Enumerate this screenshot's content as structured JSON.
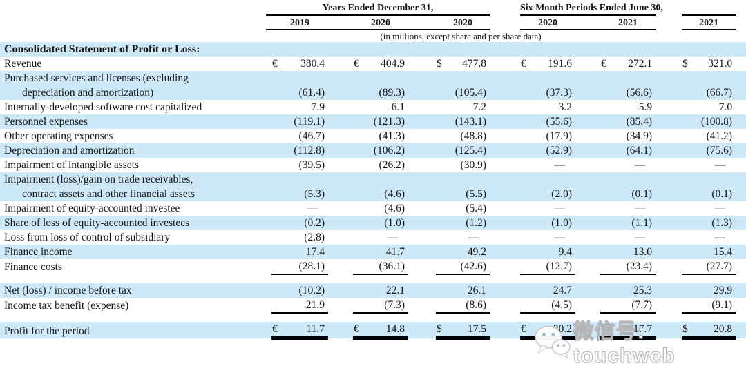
{
  "header": {
    "group1_label": "Years Ended December 31,",
    "group2_label": "Six Month Periods Ended June 30,",
    "years": [
      "2019",
      "2020",
      "2020",
      "2020",
      "2021",
      "2021"
    ],
    "note": "(in millions, except share and per share data)"
  },
  "colors": {
    "row_shade": "#cde9f8",
    "rule": "#000000",
    "text": "#141414"
  },
  "watermark": {
    "icon": "wechat-icon",
    "text": "微信号: touchweb"
  },
  "table": {
    "rows": [
      {
        "type": "section",
        "lines": [
          "Consolidated Statement of Profit or Loss:"
        ],
        "shade": true
      },
      {
        "type": "data",
        "lines": [
          "Revenue"
        ],
        "syms": [
          "€",
          "€",
          "$",
          "€",
          "€",
          "$"
        ],
        "values": [
          "380.4",
          "404.9",
          "477.8",
          "191.6",
          "272.1",
          "321.0"
        ],
        "shade": false
      },
      {
        "type": "data",
        "lines": [
          "Purchased services and licenses (excluding",
          "depreciation and amortization)"
        ],
        "values": [
          "(61.4)",
          "(89.3)",
          "(105.4)",
          "(37.3)",
          "(56.6)",
          "(66.7)"
        ],
        "shade": true
      },
      {
        "type": "data",
        "lines": [
          "Internally-developed software cost capitalized"
        ],
        "values": [
          "7.9",
          "6.1",
          "7.2",
          "3.2",
          "5.9",
          "7.0"
        ],
        "shade": false
      },
      {
        "type": "data",
        "lines": [
          "Personnel expenses"
        ],
        "values": [
          "(119.1)",
          "(121.3)",
          "(143.1)",
          "(55.6)",
          "(85.4)",
          "(100.8)"
        ],
        "shade": true
      },
      {
        "type": "data",
        "lines": [
          "Other operating expenses"
        ],
        "values": [
          "(46.7)",
          "(41.3)",
          "(48.8)",
          "(17.9)",
          "(34.9)",
          "(41.2)"
        ],
        "shade": false
      },
      {
        "type": "data",
        "lines": [
          "Depreciation and amortization"
        ],
        "values": [
          "(112.8)",
          "(106.2)",
          "(125.4)",
          "(52.9)",
          "(64.1)",
          "(75.6)"
        ],
        "shade": true
      },
      {
        "type": "data",
        "lines": [
          "Impairment of intangible assets"
        ],
        "values": [
          "(39.5)",
          "(26.2)",
          "(30.9)",
          "—",
          "—",
          "—"
        ],
        "shade": false
      },
      {
        "type": "data",
        "lines": [
          "Impairment (loss)/gain on trade receivables,",
          "contract assets and other financial assets"
        ],
        "values": [
          "(5.3)",
          "(4.6)",
          "(5.5)",
          "(2.0)",
          "(0.1)",
          "(0.1)"
        ],
        "shade": true
      },
      {
        "type": "data",
        "lines": [
          "Impairment of equity-accounted investee"
        ],
        "values": [
          "—",
          "(4.6)",
          "(5.4)",
          "—",
          "—",
          "—"
        ],
        "shade": false
      },
      {
        "type": "data",
        "lines": [
          "Share of loss of equity-accounted investees"
        ],
        "values": [
          "(0.2)",
          "(1.0)",
          "(1.2)",
          "(1.0)",
          "(1.1)",
          "(1.3)"
        ],
        "shade": true
      },
      {
        "type": "data",
        "lines": [
          "Loss from loss of control of subsidiary"
        ],
        "values": [
          "(2.8)",
          "—",
          "—",
          "—",
          "—",
          "—"
        ],
        "shade": false
      },
      {
        "type": "data",
        "lines": [
          "Finance income"
        ],
        "values": [
          "17.4",
          "41.7",
          "49.2",
          "9.4",
          "13.0",
          "15.4"
        ],
        "shade": true
      },
      {
        "type": "data",
        "lines": [
          "Finance costs"
        ],
        "values": [
          "(28.1)",
          "(36.1)",
          "(42.6)",
          "(12.7)",
          "(23.4)",
          "(27.7)"
        ],
        "shade": false,
        "underline": "single"
      },
      {
        "type": "spacer"
      },
      {
        "type": "data",
        "lines": [
          "Net (loss) / income before tax"
        ],
        "values": [
          "(10.2)",
          "22.1",
          "26.1",
          "24.7",
          "25.3",
          "29.9"
        ],
        "shade": true
      },
      {
        "type": "data",
        "lines": [
          "Income tax benefit (expense)"
        ],
        "values": [
          "21.9",
          "(7.3)",
          "(8.6)",
          "(4.5)",
          "(7.7)",
          "(9.1)"
        ],
        "shade": false,
        "underline": "single"
      },
      {
        "type": "spacer"
      },
      {
        "type": "data",
        "lines": [
          "Profit for the period"
        ],
        "syms": [
          "€",
          "€",
          "$",
          "€",
          "€",
          "$"
        ],
        "values": [
          "11.7",
          "14.8",
          "17.5",
          "20.2",
          "17.7",
          "20.8"
        ],
        "shade": true,
        "underline": "double"
      }
    ]
  }
}
